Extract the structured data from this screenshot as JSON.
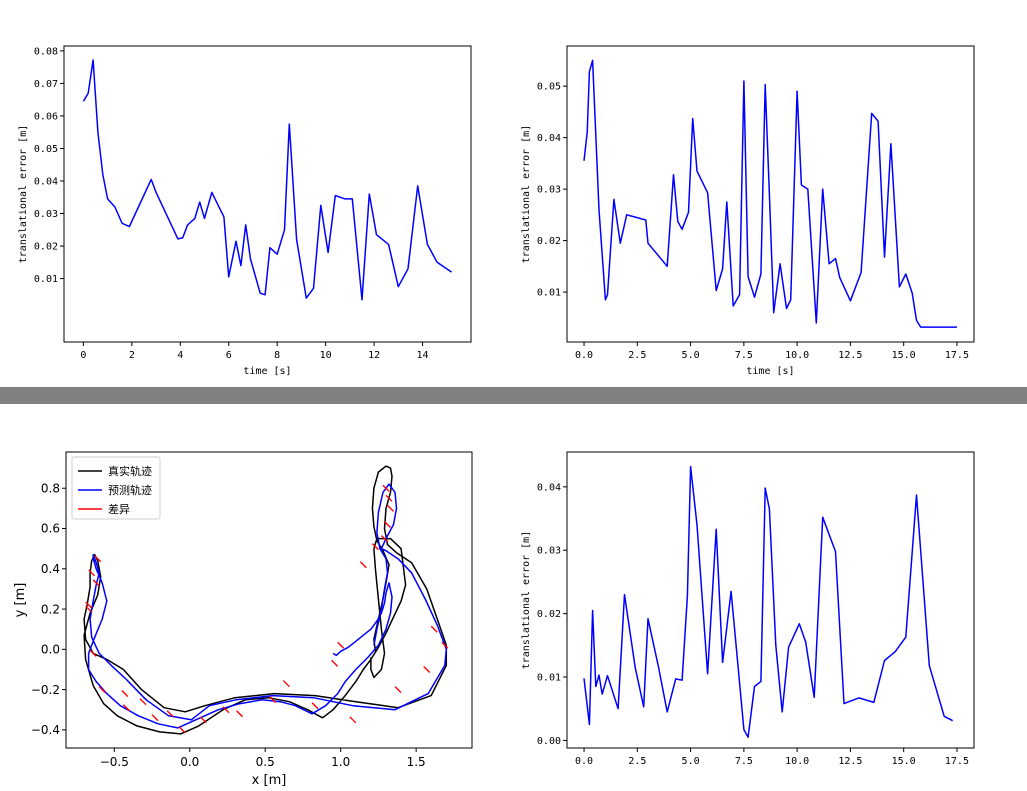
{
  "chart_data": [
    {
      "type": "line",
      "panel": "top-left",
      "xlabel": "time [s]",
      "ylabel": "translational error [m]",
      "xlim": [
        -0.8,
        16
      ],
      "ylim": [
        -0.0095,
        0.0815
      ],
      "xticks": [
        0,
        2,
        4,
        6,
        8,
        10,
        12,
        14
      ],
      "yticks": [
        0.01,
        0.02,
        0.03,
        0.04,
        0.05,
        0.06,
        0.07,
        0.08
      ],
      "xticklabels": [
        "0",
        "2",
        "4",
        "6",
        "8",
        "10",
        "12",
        "14"
      ],
      "yticklabels": [
        "0.01",
        "0.02",
        "0.03",
        "0.04",
        "0.05",
        "0.06",
        "0.07",
        "0.08"
      ],
      "color": "#0000ff",
      "x": [
        0.0,
        0.2,
        0.4,
        0.6,
        0.8,
        1.0,
        1.3,
        1.6,
        1.9,
        2.8,
        3.0,
        3.9,
        4.1,
        4.3,
        4.6,
        4.8,
        5.0,
        5.3,
        5.8,
        6.0,
        6.3,
        6.5,
        6.7,
        6.9,
        7.3,
        7.5,
        7.7,
        8.0,
        8.3,
        8.5,
        8.8,
        9.2,
        9.5,
        9.8,
        10.1,
        10.4,
        10.8,
        11.1,
        11.5,
        11.8,
        12.1,
        12.6,
        13.0,
        13.4,
        13.8,
        14.2,
        14.6,
        15.2
      ],
      "y": [
        0.0645,
        0.067,
        0.0772,
        0.055,
        0.042,
        0.0345,
        0.032,
        0.027,
        0.026,
        0.0405,
        0.0365,
        0.0222,
        0.0225,
        0.0265,
        0.0285,
        0.0335,
        0.0285,
        0.0365,
        0.029,
        0.0105,
        0.0215,
        0.014,
        0.0265,
        0.016,
        0.0055,
        0.005,
        0.0195,
        0.0175,
        0.025,
        0.0575,
        0.022,
        0.004,
        0.007,
        0.0325,
        0.018,
        0.0355,
        0.0345,
        0.0345,
        0.0035,
        0.036,
        0.0235,
        0.0205,
        0.0075,
        0.013,
        0.0385,
        0.0205,
        0.015,
        0.012
      ]
    },
    {
      "type": "line",
      "panel": "top-right",
      "xlabel": "time [s]",
      "ylabel": "translational error [m]",
      "xlim": [
        -0.8,
        18.3
      ],
      "ylim": [
        0.0003,
        0.0578
      ],
      "xticks": [
        0,
        2.5,
        5,
        7.5,
        10,
        12.5,
        15,
        17.5
      ],
      "yticks": [
        0.01,
        0.02,
        0.03,
        0.04,
        0.05
      ],
      "xticklabels": [
        "0.0",
        "2.5",
        "5.0",
        "7.5",
        "10.0",
        "12.5",
        "15.0",
        "17.5"
      ],
      "yticklabels": [
        "0.01",
        "0.02",
        "0.03",
        "0.04",
        "0.05"
      ],
      "color": "#0000ff",
      "x": [
        0.0,
        0.15,
        0.25,
        0.4,
        0.7,
        1.0,
        1.1,
        1.4,
        1.7,
        2.0,
        2.9,
        3.0,
        3.9,
        4.2,
        4.4,
        4.6,
        4.9,
        5.1,
        5.3,
        5.8,
        6.2,
        6.5,
        6.7,
        7.0,
        7.3,
        7.5,
        7.7,
        8.0,
        8.3,
        8.5,
        8.7,
        8.9,
        9.2,
        9.5,
        9.7,
        10.0,
        10.2,
        10.5,
        10.9,
        11.2,
        11.5,
        11.8,
        12.0,
        12.5,
        13.0,
        13.5,
        13.8,
        14.1,
        14.4,
        14.8,
        15.1,
        15.4,
        15.6,
        15.8,
        16.1,
        16.5,
        16.8,
        17.2,
        17.5
      ],
      "y": [
        0.0355,
        0.041,
        0.0528,
        0.055,
        0.026,
        0.0085,
        0.0095,
        0.028,
        0.0195,
        0.025,
        0.024,
        0.0195,
        0.015,
        0.0328,
        0.0237,
        0.0222,
        0.0255,
        0.0437,
        0.0335,
        0.0293,
        0.0103,
        0.0145,
        0.0275,
        0.0073,
        0.0095,
        0.051,
        0.013,
        0.009,
        0.0135,
        0.0503,
        0.029,
        0.006,
        0.0155,
        0.0068,
        0.0085,
        0.049,
        0.0308,
        0.03,
        0.004,
        0.03,
        0.0155,
        0.0165,
        0.0128,
        0.0083,
        0.0138,
        0.0447,
        0.0432,
        0.0168,
        0.0388,
        0.011,
        0.0135,
        0.0098,
        0.0045,
        0.0032,
        0.0032,
        0.0032,
        0.0032,
        0.0032,
        0.0032
      ]
    },
    {
      "type": "line",
      "panel": "bottom-left",
      "xlabel": "x [m]",
      "ylabel": "y [m]",
      "xlim": [
        -0.82,
        1.87
      ],
      "ylim": [
        -0.49,
        0.98
      ],
      "xticks": [
        -0.5,
        0,
        0.5,
        1,
        1.5
      ],
      "yticks": [
        -0.4,
        -0.2,
        0,
        0.2,
        0.4,
        0.6,
        0.8
      ],
      "xticklabels": [
        "−0.5",
        "0.0",
        "0.5",
        "1.0",
        "1.5"
      ],
      "yticklabels": [
        "−0.4",
        "−0.2",
        "0.0",
        "0.2",
        "0.4",
        "0.6",
        "0.8"
      ],
      "legend_position": "upper-left",
      "series": [
        {
          "name": "真实轨迹",
          "color": "#000000",
          "x": [
            1.23,
            1.22,
            1.25,
            1.28,
            1.3,
            1.32,
            1.28,
            1.24,
            1.22,
            1.21,
            1.22,
            1.25,
            1.3,
            1.33,
            1.34,
            1.33,
            1.3,
            1.29,
            1.31,
            1.37,
            1.47,
            1.57,
            1.64,
            1.7,
            1.7,
            1.6,
            1.38,
            1.1,
            0.83,
            0.56,
            0.3,
            0.1,
            -0.03,
            -0.17,
            -0.32,
            -0.44,
            -0.55,
            -0.64,
            -0.69,
            -0.7,
            -0.68,
            -0.66,
            -0.66,
            -0.65,
            -0.63,
            -0.61,
            -0.59,
            -0.61,
            -0.66,
            -0.7,
            -0.69,
            -0.64,
            -0.57,
            -0.48,
            -0.35,
            -0.2,
            -0.06,
            0.06,
            0.22,
            0.37,
            0.52,
            0.66,
            0.78,
            0.88,
            0.95,
            1.03,
            1.1,
            1.15,
            1.2,
            1.25,
            1.3,
            1.35,
            1.4,
            1.43,
            1.42,
            1.4,
            1.33,
            1.24,
            1.22,
            1.23,
            1.25,
            1.27,
            1.29,
            1.27,
            1.22,
            1.2,
            1.2
          ],
          "y": [
            -0.01,
            0.05,
            0.15,
            0.25,
            0.33,
            0.42,
            0.49,
            0.54,
            0.61,
            0.7,
            0.8,
            0.88,
            0.91,
            0.9,
            0.86,
            0.78,
            0.7,
            0.6,
            0.52,
            0.48,
            0.43,
            0.3,
            0.15,
            0.02,
            -0.08,
            -0.23,
            -0.29,
            -0.26,
            -0.23,
            -0.22,
            -0.24,
            -0.28,
            -0.31,
            -0.29,
            -0.2,
            -0.1,
            -0.05,
            -0.02,
            0.05,
            0.15,
            0.22,
            0.31,
            0.38,
            0.44,
            0.47,
            0.44,
            0.36,
            0.27,
            0.18,
            0.07,
            -0.05,
            -0.18,
            -0.27,
            -0.33,
            -0.38,
            -0.41,
            -0.42,
            -0.38,
            -0.3,
            -0.25,
            -0.24,
            -0.26,
            -0.3,
            -0.34,
            -0.3,
            -0.23,
            -0.16,
            -0.1,
            -0.05,
            0.01,
            0.08,
            0.16,
            0.24,
            0.32,
            0.38,
            0.5,
            0.55,
            0.55,
            0.5,
            0.4,
            0.25,
            0.1,
            -0.02,
            -0.1,
            -0.14,
            -0.1,
            -0.04
          ]
        },
        {
          "name": "预测轨迹",
          "color": "#0000ff",
          "x": [
            1.22,
            1.24,
            1.27,
            1.29,
            1.31,
            1.3,
            1.26,
            1.24,
            1.25,
            1.28,
            1.32,
            1.36,
            1.37,
            1.35,
            1.3,
            1.27,
            1.3,
            1.38,
            1.47,
            1.56,
            1.64,
            1.7,
            1.69,
            1.58,
            1.36,
            1.08,
            0.82,
            0.55,
            0.31,
            0.13,
            0.01,
            -0.14,
            -0.29,
            -0.42,
            -0.52,
            -0.6,
            -0.65,
            -0.66,
            -0.64,
            -0.62,
            -0.6,
            -0.62,
            -0.64,
            -0.64,
            -0.62,
            -0.58,
            -0.55,
            -0.58,
            -0.63,
            -0.67,
            -0.67,
            -0.62,
            -0.55,
            -0.46,
            -0.34,
            -0.21,
            -0.08,
            0.04,
            0.19,
            0.33,
            0.48,
            0.6,
            0.7,
            0.81,
            0.9,
            0.98,
            1.03,
            1.1,
            1.18,
            1.25,
            1.3,
            1.33,
            1.34,
            1.32,
            1.3,
            1.29,
            1.27,
            1.24,
            1.2,
            1.15,
            1.1,
            1.05,
            1.0,
            0.97,
            0.95
          ],
          "y": [
            0.02,
            0.1,
            0.2,
            0.3,
            0.38,
            0.45,
            0.5,
            0.58,
            0.68,
            0.78,
            0.82,
            0.78,
            0.7,
            0.62,
            0.55,
            0.5,
            0.49,
            0.45,
            0.38,
            0.25,
            0.12,
            0.0,
            -0.08,
            -0.22,
            -0.3,
            -0.28,
            -0.24,
            -0.23,
            -0.25,
            -0.28,
            -0.35,
            -0.33,
            -0.25,
            -0.15,
            -0.08,
            -0.02,
            0.06,
            0.15,
            0.24,
            0.32,
            0.38,
            0.43,
            0.47,
            0.45,
            0.4,
            0.33,
            0.24,
            0.15,
            0.06,
            -0.02,
            -0.1,
            -0.16,
            -0.22,
            -0.28,
            -0.33,
            -0.37,
            -0.39,
            -0.35,
            -0.3,
            -0.27,
            -0.25,
            -0.26,
            -0.28,
            -0.32,
            -0.28,
            -0.22,
            -0.16,
            -0.1,
            -0.04,
            0.02,
            0.1,
            0.18,
            0.26,
            0.33,
            0.28,
            0.23,
            0.18,
            0.14,
            0.1,
            0.07,
            0.04,
            0.01,
            -0.01,
            -0.03,
            -0.02
          ]
        },
        {
          "name": "差异",
          "color": "#ff0000",
          "x": [
            1.3,
            1.32,
            1.33,
            1.31,
            1.29,
            1.23,
            1.15,
            1.0,
            0.96,
            0.64,
            0.33,
            0.09,
            -0.13,
            -0.31,
            -0.43,
            -0.64,
            -0.67,
            -0.62,
            -0.61,
            -0.65,
            -0.67,
            -0.58,
            -0.42,
            -0.23,
            -0.05,
            0.24,
            0.55,
            0.83,
            1.08,
            1.38,
            1.57,
            1.69,
            1.62
          ],
          "y": [
            0.8,
            0.75,
            0.7,
            0.62,
            0.55,
            0.51,
            0.42,
            0.02,
            -0.07,
            -0.17,
            -0.32,
            -0.35,
            -0.32,
            -0.26,
            -0.22,
            -0.02,
            0.22,
            0.33,
            0.45,
            0.38,
            0.2,
            -0.2,
            -0.29,
            -0.34,
            -0.4,
            -0.3,
            -0.25,
            -0.28,
            -0.35,
            -0.2,
            -0.1,
            0.02,
            0.1
          ]
        }
      ]
    },
    {
      "type": "line",
      "panel": "bottom-right",
      "xlabel": "",
      "ylabel": "translational error [m]",
      "xlim": [
        -0.8,
        18.3
      ],
      "ylim": [
        -0.0012,
        0.0455
      ],
      "xticks": [
        0,
        2.5,
        5,
        7.5,
        10,
        12.5,
        15,
        17.5
      ],
      "yticks": [
        0.0,
        0.01,
        0.02,
        0.03,
        0.04
      ],
      "xticklabels": [
        "0.0",
        "2.5",
        "5.0",
        "7.5",
        "10.0",
        "12.5",
        "15.0",
        "17.5"
      ],
      "yticklabels": [
        "0.00",
        "0.01",
        "0.02",
        "0.03",
        "0.04"
      ],
      "color": "#0000ff",
      "x": [
        0.0,
        0.25,
        0.4,
        0.55,
        0.7,
        0.85,
        1.1,
        1.6,
        1.9,
        2.4,
        2.8,
        3.0,
        3.5,
        3.9,
        4.3,
        4.6,
        4.85,
        5.0,
        5.3,
        5.8,
        6.2,
        6.5,
        6.9,
        7.5,
        7.7,
        8.0,
        8.3,
        8.5,
        8.7,
        9.0,
        9.3,
        9.6,
        10.1,
        10.4,
        10.8,
        11.2,
        11.8,
        12.2,
        12.9,
        13.6,
        14.1,
        14.6,
        15.1,
        15.6,
        16.2,
        16.9,
        17.3
      ],
      "y": [
        0.0098,
        0.0025,
        0.0205,
        0.0085,
        0.0103,
        0.0073,
        0.0102,
        0.005,
        0.023,
        0.0115,
        0.0053,
        0.0192,
        0.0115,
        0.0045,
        0.0097,
        0.0095,
        0.0228,
        0.0432,
        0.034,
        0.0105,
        0.0333,
        0.0123,
        0.0235,
        0.0017,
        0.0005,
        0.0085,
        0.0093,
        0.0398,
        0.0365,
        0.015,
        0.0045,
        0.0147,
        0.0184,
        0.0155,
        0.0068,
        0.0352,
        0.0298,
        0.0058,
        0.0067,
        0.006,
        0.0126,
        0.014,
        0.0163,
        0.0387,
        0.0118,
        0.0038,
        0.0031
      ]
    }
  ]
}
